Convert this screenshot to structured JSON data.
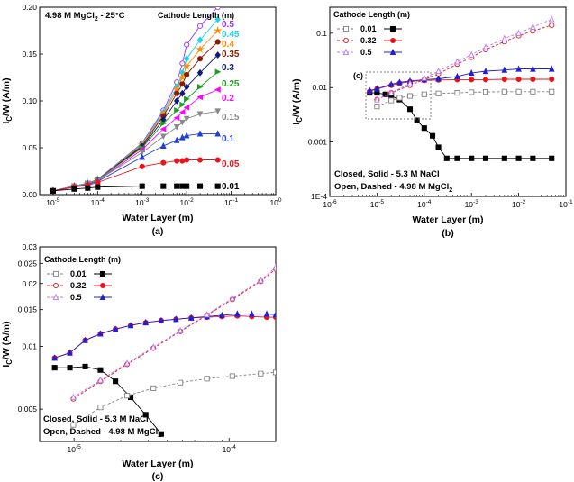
{
  "chart_data": [
    {
      "id": "a",
      "type": "line",
      "panel_label": "(a)",
      "title": "4.98 M MgCl2 - 25°C",
      "xlabel": "Water Layer (m)",
      "ylabel": "IC/W (A/m)",
      "xscale": "log",
      "xlim": [
        5e-06,
        1
      ],
      "ylim": [
        0,
        0.2
      ],
      "xticks": [
        {
          "v": 1e-05,
          "l": "10-5"
        },
        {
          "v": 0.0001,
          "l": "10-4"
        },
        {
          "v": 0.001,
          "l": "10-3"
        },
        {
          "v": 0.01,
          "l": "10-2"
        },
        {
          "v": 0.1,
          "l": "10-1"
        },
        {
          "v": 1,
          "l": "100"
        }
      ],
      "yticks": [
        {
          "v": 0,
          "l": "0.00"
        },
        {
          "v": 0.05,
          "l": "0.05"
        },
        {
          "v": 0.1,
          "l": "0.10"
        },
        {
          "v": 0.15,
          "l": "0.15"
        },
        {
          "v": 0.2,
          "l": "0.20"
        }
      ],
      "legend_title": "Cathode Length (m)",
      "x": [
        1e-05,
        3e-05,
        6e-05,
        0.0001,
        0.001,
        0.003,
        0.006,
        0.008,
        0.01,
        0.02,
        0.05
      ],
      "series": [
        {
          "name": "0.5",
          "color": "#9b30ff",
          "marker": "circle-open",
          "values": [
            0.004,
            0.009,
            0.012,
            0.016,
            0.055,
            0.09,
            0.12,
            0.14,
            0.16,
            0.18,
            0.2
          ]
        },
        {
          "name": "0.45",
          "color": "#19d3e6",
          "marker": "diamond",
          "values": [
            0.004,
            0.009,
            0.012,
            0.016,
            0.054,
            0.088,
            0.115,
            0.13,
            0.145,
            0.165,
            0.187
          ]
        },
        {
          "name": "0.4",
          "color": "#ff8c00",
          "marker": "star",
          "values": [
            0.004,
            0.009,
            0.012,
            0.016,
            0.053,
            0.086,
            0.112,
            0.125,
            0.137,
            0.155,
            0.175
          ]
        },
        {
          "name": "0.35",
          "color": "#8b1a00",
          "marker": "circle",
          "values": [
            0.004,
            0.009,
            0.012,
            0.016,
            0.052,
            0.084,
            0.108,
            0.118,
            0.128,
            0.145,
            0.163
          ]
        },
        {
          "name": "0.3",
          "color": "#0b1a80",
          "marker": "diamond",
          "values": [
            0.004,
            0.009,
            0.012,
            0.016,
            0.051,
            0.08,
            0.1,
            0.108,
            0.115,
            0.13,
            0.149
          ]
        },
        {
          "name": "0.25",
          "color": "#1e9e1e",
          "marker": "triangle-right",
          "values": [
            0.004,
            0.009,
            0.012,
            0.016,
            0.05,
            0.076,
            0.09,
            0.096,
            0.102,
            0.115,
            0.131
          ]
        },
        {
          "name": "0.2",
          "color": "#ff00ff",
          "marker": "triangle-left",
          "values": [
            0.004,
            0.009,
            0.012,
            0.015,
            0.048,
            0.07,
            0.082,
            0.088,
            0.093,
            0.104,
            0.112
          ]
        },
        {
          "name": "0.15",
          "color": "#888888",
          "marker": "triangle-down",
          "values": [
            0.004,
            0.009,
            0.012,
            0.015,
            0.045,
            0.062,
            0.072,
            0.077,
            0.081,
            0.086,
            0.089
          ]
        },
        {
          "name": "0.1",
          "color": "#1f3fd6",
          "marker": "triangle-up",
          "values": [
            0.004,
            0.008,
            0.011,
            0.014,
            0.04,
            0.052,
            0.058,
            0.061,
            0.063,
            0.065,
            0.065
          ]
        },
        {
          "name": "0.05",
          "color": "#e8161b",
          "marker": "circle",
          "values": [
            0.004,
            0.008,
            0.01,
            0.013,
            0.03,
            0.034,
            0.036,
            0.036,
            0.037,
            0.037,
            0.037
          ]
        },
        {
          "name": "0.01",
          "color": "#000000",
          "marker": "square",
          "values": [
            0.004,
            0.006,
            0.007,
            0.008,
            0.009,
            0.009,
            0.009,
            0.009,
            0.009,
            0.009,
            0.009
          ]
        }
      ]
    },
    {
      "id": "b",
      "type": "line",
      "panel_label": "(b)",
      "xlabel": "Water Layer (m)",
      "ylabel": "IC/W (A/m)",
      "xscale": "log",
      "yscale": "log",
      "xlim": [
        1e-06,
        0.1
      ],
      "ylim": [
        0.0001,
        0.3
      ],
      "xticks": [
        {
          "v": 1e-06,
          "l": "10-6"
        },
        {
          "v": 1e-05,
          "l": "10-5"
        },
        {
          "v": 0.0001,
          "l": "10-4"
        },
        {
          "v": 0.001,
          "l": "10-3"
        },
        {
          "v": 0.01,
          "l": "10-2"
        },
        {
          "v": 0.1,
          "l": "10-1"
        }
      ],
      "yticks": [
        {
          "v": 0.0001,
          "l": "1E-4"
        },
        {
          "v": 0.001,
          "l": "0.001"
        },
        {
          "v": 0.01,
          "l": "0.01"
        },
        {
          "v": 0.1,
          "l": "0.1"
        }
      ],
      "legend_title": "Cathode Length (m)",
      "inset_label": "(c)",
      "note_closed": "Closed, Solid - 5.3 M NaCl",
      "note_open": "Open, Dashed - 4.98 M MgCl2",
      "legend": [
        {
          "name": "0.01",
          "color": "#000000",
          "marker": "square"
        },
        {
          "name": "0.32",
          "color": "#e8161b",
          "marker": "circle"
        },
        {
          "name": "0.5",
          "color": "#1f1fd6",
          "marker": "triangle-up"
        }
      ],
      "series": [
        {
          "name": "0.01 NaCl",
          "style": "solid",
          "color": "#000000",
          "marker": "square",
          "x": [
            7e-06,
            1e-05,
            1.5e-05,
            2e-05,
            3e-05,
            5e-05,
            7e-05,
            0.0001,
            0.00015,
            0.0002,
            0.0003,
            0.0005,
            0.001,
            0.002,
            0.005,
            0.01,
            0.02,
            0.05
          ],
          "values": [
            0.008,
            0.008,
            0.0075,
            0.007,
            0.006,
            0.004,
            0.0025,
            0.0018,
            0.0013,
            0.0008,
            0.0005,
            0.0005,
            0.0005,
            0.0005,
            0.0005,
            0.0005,
            0.0005,
            0.0005
          ]
        },
        {
          "name": "0.01 MgCl2",
          "style": "dashed",
          "color": "#808080",
          "marker": "square-open",
          "x": [
            1e-05,
            2e-05,
            3e-05,
            5e-05,
            0.0001,
            0.0002,
            0.0005,
            0.001,
            0.002,
            0.005,
            0.01,
            0.02,
            0.05
          ],
          "values": [
            0.0045,
            0.0058,
            0.0065,
            0.007,
            0.0075,
            0.0078,
            0.008,
            0.0082,
            0.0083,
            0.0084,
            0.0084,
            0.0084,
            0.0084
          ]
        },
        {
          "name": "0.32 NaCl",
          "style": "solid",
          "color": "#e8161b",
          "marker": "circle",
          "x": [
            7e-06,
            1e-05,
            2e-05,
            3e-05,
            5e-05,
            0.0001,
            0.0002,
            0.0005,
            0.001,
            0.002,
            0.005,
            0.01,
            0.02,
            0.05
          ],
          "values": [
            0.0085,
            0.0095,
            0.011,
            0.012,
            0.0128,
            0.0135,
            0.0138,
            0.014,
            0.014,
            0.014,
            0.0142,
            0.0142,
            0.0142,
            0.0142
          ]
        },
        {
          "name": "0.32 MgCl2",
          "style": "dashed",
          "color": "#e8161b",
          "marker": "circle-open",
          "x": [
            1e-05,
            2e-05,
            5e-05,
            0.0001,
            0.0002,
            0.0005,
            0.001,
            0.002,
            0.005,
            0.01,
            0.02,
            0.05
          ],
          "values": [
            0.006,
            0.008,
            0.011,
            0.014,
            0.018,
            0.027,
            0.036,
            0.05,
            0.07,
            0.09,
            0.11,
            0.14
          ]
        },
        {
          "name": "0.5 NaCl",
          "style": "solid",
          "color": "#1f1fd6",
          "marker": "triangle-up",
          "x": [
            7e-06,
            1e-05,
            2e-05,
            3e-05,
            5e-05,
            0.0001,
            0.0002,
            0.0005,
            0.001,
            0.002,
            0.005,
            0.01,
            0.02,
            0.05
          ],
          "values": [
            0.0088,
            0.0095,
            0.0115,
            0.0125,
            0.0132,
            0.014,
            0.0145,
            0.016,
            0.0185,
            0.02,
            0.021,
            0.022,
            0.022,
            0.022
          ]
        },
        {
          "name": "0.5 MgCl2",
          "style": "dashed",
          "color": "#b878f0",
          "marker": "triangle-open",
          "x": [
            1e-05,
            2e-05,
            5e-05,
            0.0001,
            0.0002,
            0.0005,
            0.001,
            0.002,
            0.005,
            0.01,
            0.02,
            0.05
          ],
          "values": [
            0.006,
            0.008,
            0.012,
            0.015,
            0.02,
            0.03,
            0.04,
            0.055,
            0.08,
            0.1,
            0.13,
            0.18
          ]
        }
      ]
    },
    {
      "id": "c",
      "type": "line",
      "panel_label": "(c)",
      "xlabel": "Water Layer (m)",
      "ylabel": "IC/W (A/m)",
      "xscale": "log",
      "yscale": "log",
      "xlim": [
        6e-06,
        0.0002
      ],
      "ylim": [
        0.0035,
        0.03
      ],
      "xticks": [
        {
          "v": 1e-05,
          "l": "10-5"
        },
        {
          "v": 0.0001,
          "l": "10-4"
        }
      ],
      "yticks": [
        {
          "v": 0.005,
          "l": "0.005"
        },
        {
          "v": 0.01,
          "l": "0.01"
        },
        {
          "v": 0.015,
          "l": "0.015"
        },
        {
          "v": 0.02,
          "l": "0.02"
        },
        {
          "v": 0.025,
          "l": "0.025"
        },
        {
          "v": 0.03,
          "l": "0.03"
        }
      ],
      "legend_title": "Cathode Length (m)",
      "note_closed": "Closed, Solid - 5.3 M NaCl",
      "note_open": "Open, Dashed - 4.98 M MgCl2",
      "legend": [
        {
          "name": "0.01",
          "color": "#000000",
          "marker": "square"
        },
        {
          "name": "0.32",
          "color": "#e8161b",
          "marker": "circle"
        },
        {
          "name": "0.5",
          "color": "#1f1fd6",
          "marker": "triangle-up"
        }
      ],
      "series": [
        {
          "name": "0.01 NaCl",
          "style": "solid",
          "color": "#000000",
          "marker": "square",
          "x": [
            7.5e-06,
            9.4e-06,
            1.18e-05,
            1.48e-05,
            1.85e-05,
            2.32e-05,
            2.9e-05,
            3.65e-05
          ],
          "values": [
            0.0079,
            0.0079,
            0.008,
            0.0077,
            0.0068,
            0.0057,
            0.0047,
            0.0038
          ]
        },
        {
          "name": "0.01 MgCl2",
          "style": "dashed",
          "color": "#808080",
          "marker": "square-open",
          "x": [
            9.9e-06,
            1.48e-05,
            2.2e-05,
            3.25e-05,
            4.85e-05,
            7.2e-05,
            0.000105,
            0.00016,
            0.0002
          ],
          "values": [
            0.0042,
            0.0051,
            0.0058,
            0.0063,
            0.0067,
            0.007,
            0.0072,
            0.0074,
            0.0075
          ]
        },
        {
          "name": "0.32 NaCl",
          "style": "solid",
          "color": "#e8161b",
          "marker": "circle",
          "x": [
            7.5e-06,
            9.4e-06,
            1.18e-05,
            1.48e-05,
            1.85e-05,
            2.32e-05,
            2.9e-05,
            3.65e-05,
            4.55e-05,
            5.7e-05,
            7.2e-05,
            9e-05,
            0.000113,
            0.00014,
            0.000175,
            0.0002
          ],
          "values": [
            0.0088,
            0.0093,
            0.0107,
            0.0115,
            0.0121,
            0.0126,
            0.013,
            0.0133,
            0.0135,
            0.0137,
            0.0138,
            0.0139,
            0.014,
            0.0139,
            0.0138,
            0.0138
          ]
        },
        {
          "name": "0.32 MgCl2",
          "style": "dashed",
          "color": "#e8161b",
          "marker": "circle-open",
          "x": [
            9.9e-06,
            1.48e-05,
            2.2e-05,
            3.25e-05,
            4.85e-05,
            7.2e-05,
            0.000105,
            0.00016,
            0.0002
          ],
          "values": [
            0.0056,
            0.0068,
            0.0082,
            0.0098,
            0.0118,
            0.0141,
            0.0168,
            0.0205,
            0.0235
          ]
        },
        {
          "name": "0.5 NaCl",
          "style": "solid",
          "color": "#1f1fd6",
          "marker": "triangle-up",
          "x": [
            7.5e-06,
            9.4e-06,
            1.18e-05,
            1.48e-05,
            1.85e-05,
            2.32e-05,
            2.9e-05,
            3.65e-05,
            4.55e-05,
            5.7e-05,
            7.2e-05,
            9e-05,
            0.000113,
            0.00014,
            0.000175,
            0.0002
          ],
          "values": [
            0.0088,
            0.0093,
            0.0107,
            0.0115,
            0.0121,
            0.0126,
            0.013,
            0.0133,
            0.0135,
            0.0137,
            0.0139,
            0.0141,
            0.0143,
            0.0143,
            0.0143,
            0.0142
          ]
        },
        {
          "name": "0.5 MgCl2",
          "style": "dashed",
          "color": "#b878f0",
          "marker": "triangle-open",
          "x": [
            9.9e-06,
            1.48e-05,
            2.2e-05,
            3.25e-05,
            4.85e-05,
            7.2e-05,
            0.000105,
            0.00016,
            0.0002
          ],
          "values": [
            0.0057,
            0.0069,
            0.0083,
            0.0099,
            0.0119,
            0.0142,
            0.017,
            0.0207,
            0.024
          ]
        }
      ]
    }
  ]
}
